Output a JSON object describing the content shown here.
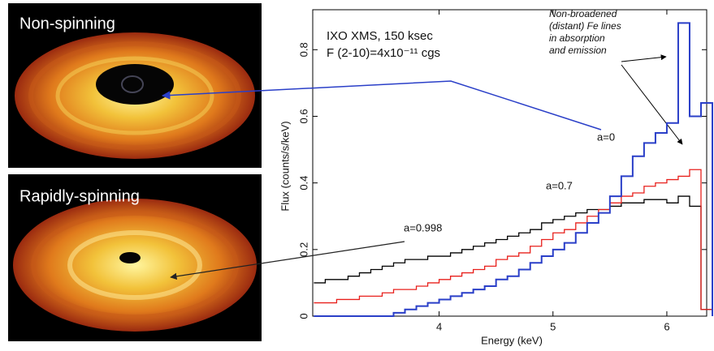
{
  "panels": [
    {
      "label": "Non-spinning"
    },
    {
      "label": "Rapidly-spinning"
    }
  ],
  "chart_data": {
    "type": "line",
    "step": true,
    "xlabel": "Energy (keV)",
    "ylabel": "Flux (counts/s/keV)",
    "annotations": [
      "IXO XMS, 150 ksec",
      "F (2-10)=4x10⁻¹¹ cgs"
    ],
    "note": [
      "Non-broadened",
      "(distant) Fe lines",
      "in absorption",
      "and emission"
    ],
    "x": [
      2.9,
      3.0,
      3.1,
      3.2,
      3.3,
      3.4,
      3.5,
      3.6,
      3.7,
      3.8,
      3.9,
      4.0,
      4.1,
      4.2,
      4.3,
      4.4,
      4.5,
      4.6,
      4.7,
      4.8,
      4.9,
      5.0,
      5.1,
      5.2,
      5.3,
      5.4,
      5.5,
      5.6,
      5.7,
      5.8,
      5.9,
      6.0,
      6.1,
      6.2,
      6.3
    ],
    "series": [
      {
        "name": "a=0.998",
        "color": "#000000",
        "values": [
          0.1,
          0.11,
          0.11,
          0.12,
          0.13,
          0.14,
          0.15,
          0.16,
          0.17,
          0.17,
          0.18,
          0.18,
          0.19,
          0.2,
          0.21,
          0.22,
          0.23,
          0.24,
          0.25,
          0.26,
          0.28,
          0.29,
          0.3,
          0.31,
          0.32,
          0.32,
          0.33,
          0.34,
          0.34,
          0.35,
          0.35,
          0.34,
          0.36,
          0.33,
          0.02
        ]
      },
      {
        "name": "a=0.7",
        "color": "#e8201c",
        "values": [
          0.04,
          0.04,
          0.05,
          0.05,
          0.06,
          0.06,
          0.07,
          0.08,
          0.08,
          0.09,
          0.1,
          0.11,
          0.12,
          0.13,
          0.14,
          0.15,
          0.17,
          0.18,
          0.19,
          0.21,
          0.23,
          0.25,
          0.26,
          0.28,
          0.3,
          0.32,
          0.34,
          0.36,
          0.37,
          0.39,
          0.4,
          0.41,
          0.42,
          0.44,
          0.02
        ]
      },
      {
        "name": "a=0",
        "color": "#2a3fc8",
        "values": [
          0,
          0,
          0,
          0,
          0,
          0,
          0,
          0.01,
          0.02,
          0.03,
          0.04,
          0.05,
          0.06,
          0.07,
          0.08,
          0.09,
          0.11,
          0.12,
          0.14,
          0.16,
          0.18,
          0.2,
          0.22,
          0.25,
          0.28,
          0.31,
          0.36,
          0.42,
          0.48,
          0.52,
          0.55,
          0.58,
          0.88,
          0.6,
          0.64
        ]
      }
    ],
    "xlim": [
      2.89,
      6.35
    ],
    "ylim": [
      0,
      0.92
    ],
    "xticks": [
      4,
      5,
      6
    ],
    "yticks": [
      0,
      0.2,
      0.4,
      0.6,
      0.8
    ]
  }
}
